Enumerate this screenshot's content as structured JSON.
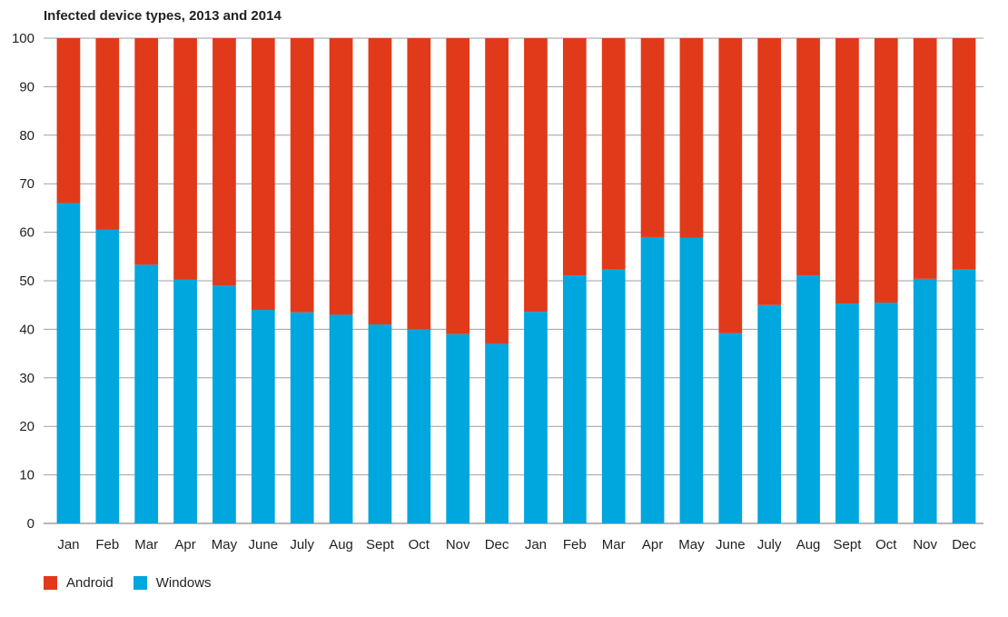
{
  "chart_data": {
    "type": "bar",
    "stacked": true,
    "title": "Infected device types, 2013 and 2014",
    "xlabel": "",
    "ylabel": "",
    "ylim": [
      0,
      100
    ],
    "yticks": [
      0,
      10,
      20,
      30,
      40,
      50,
      60,
      70,
      80,
      90,
      100
    ],
    "grid": true,
    "legend_position": "bottom-left",
    "categories": [
      "Jan",
      "Feb",
      "Mar",
      "Apr",
      "May",
      "June",
      "July",
      "Aug",
      "Sept",
      "Oct",
      "Nov",
      "Dec",
      "Jan",
      "Feb",
      "Mar",
      "Apr",
      "May",
      "June",
      "July",
      "Aug",
      "Sept",
      "Oct",
      "Nov",
      "Dec"
    ],
    "series": [
      {
        "name": "Windows",
        "color": "#00a6de",
        "values": [
          66,
          60.5,
          53.3,
          50.2,
          49,
          44,
          43.5,
          43,
          41,
          40,
          39,
          37,
          43.6,
          51.1,
          52.3,
          59,
          58.9,
          39.2,
          45,
          51.1,
          45.3,
          45.5,
          50.4,
          52.3
        ]
      },
      {
        "name": "Android",
        "color": "#e03a1a",
        "values": [
          34,
          39.5,
          46.7,
          49.8,
          51,
          56,
          56.5,
          57,
          59,
          60,
          61,
          63,
          56.4,
          48.9,
          47.7,
          41,
          41.1,
          60.8,
          55,
          48.9,
          54.7,
          54.5,
          49.6,
          47.7
        ]
      }
    ]
  },
  "legend": {
    "android_label": "Android",
    "windows_label": "Windows",
    "android_color": "#e03a1a",
    "windows_color": "#00a6de"
  }
}
